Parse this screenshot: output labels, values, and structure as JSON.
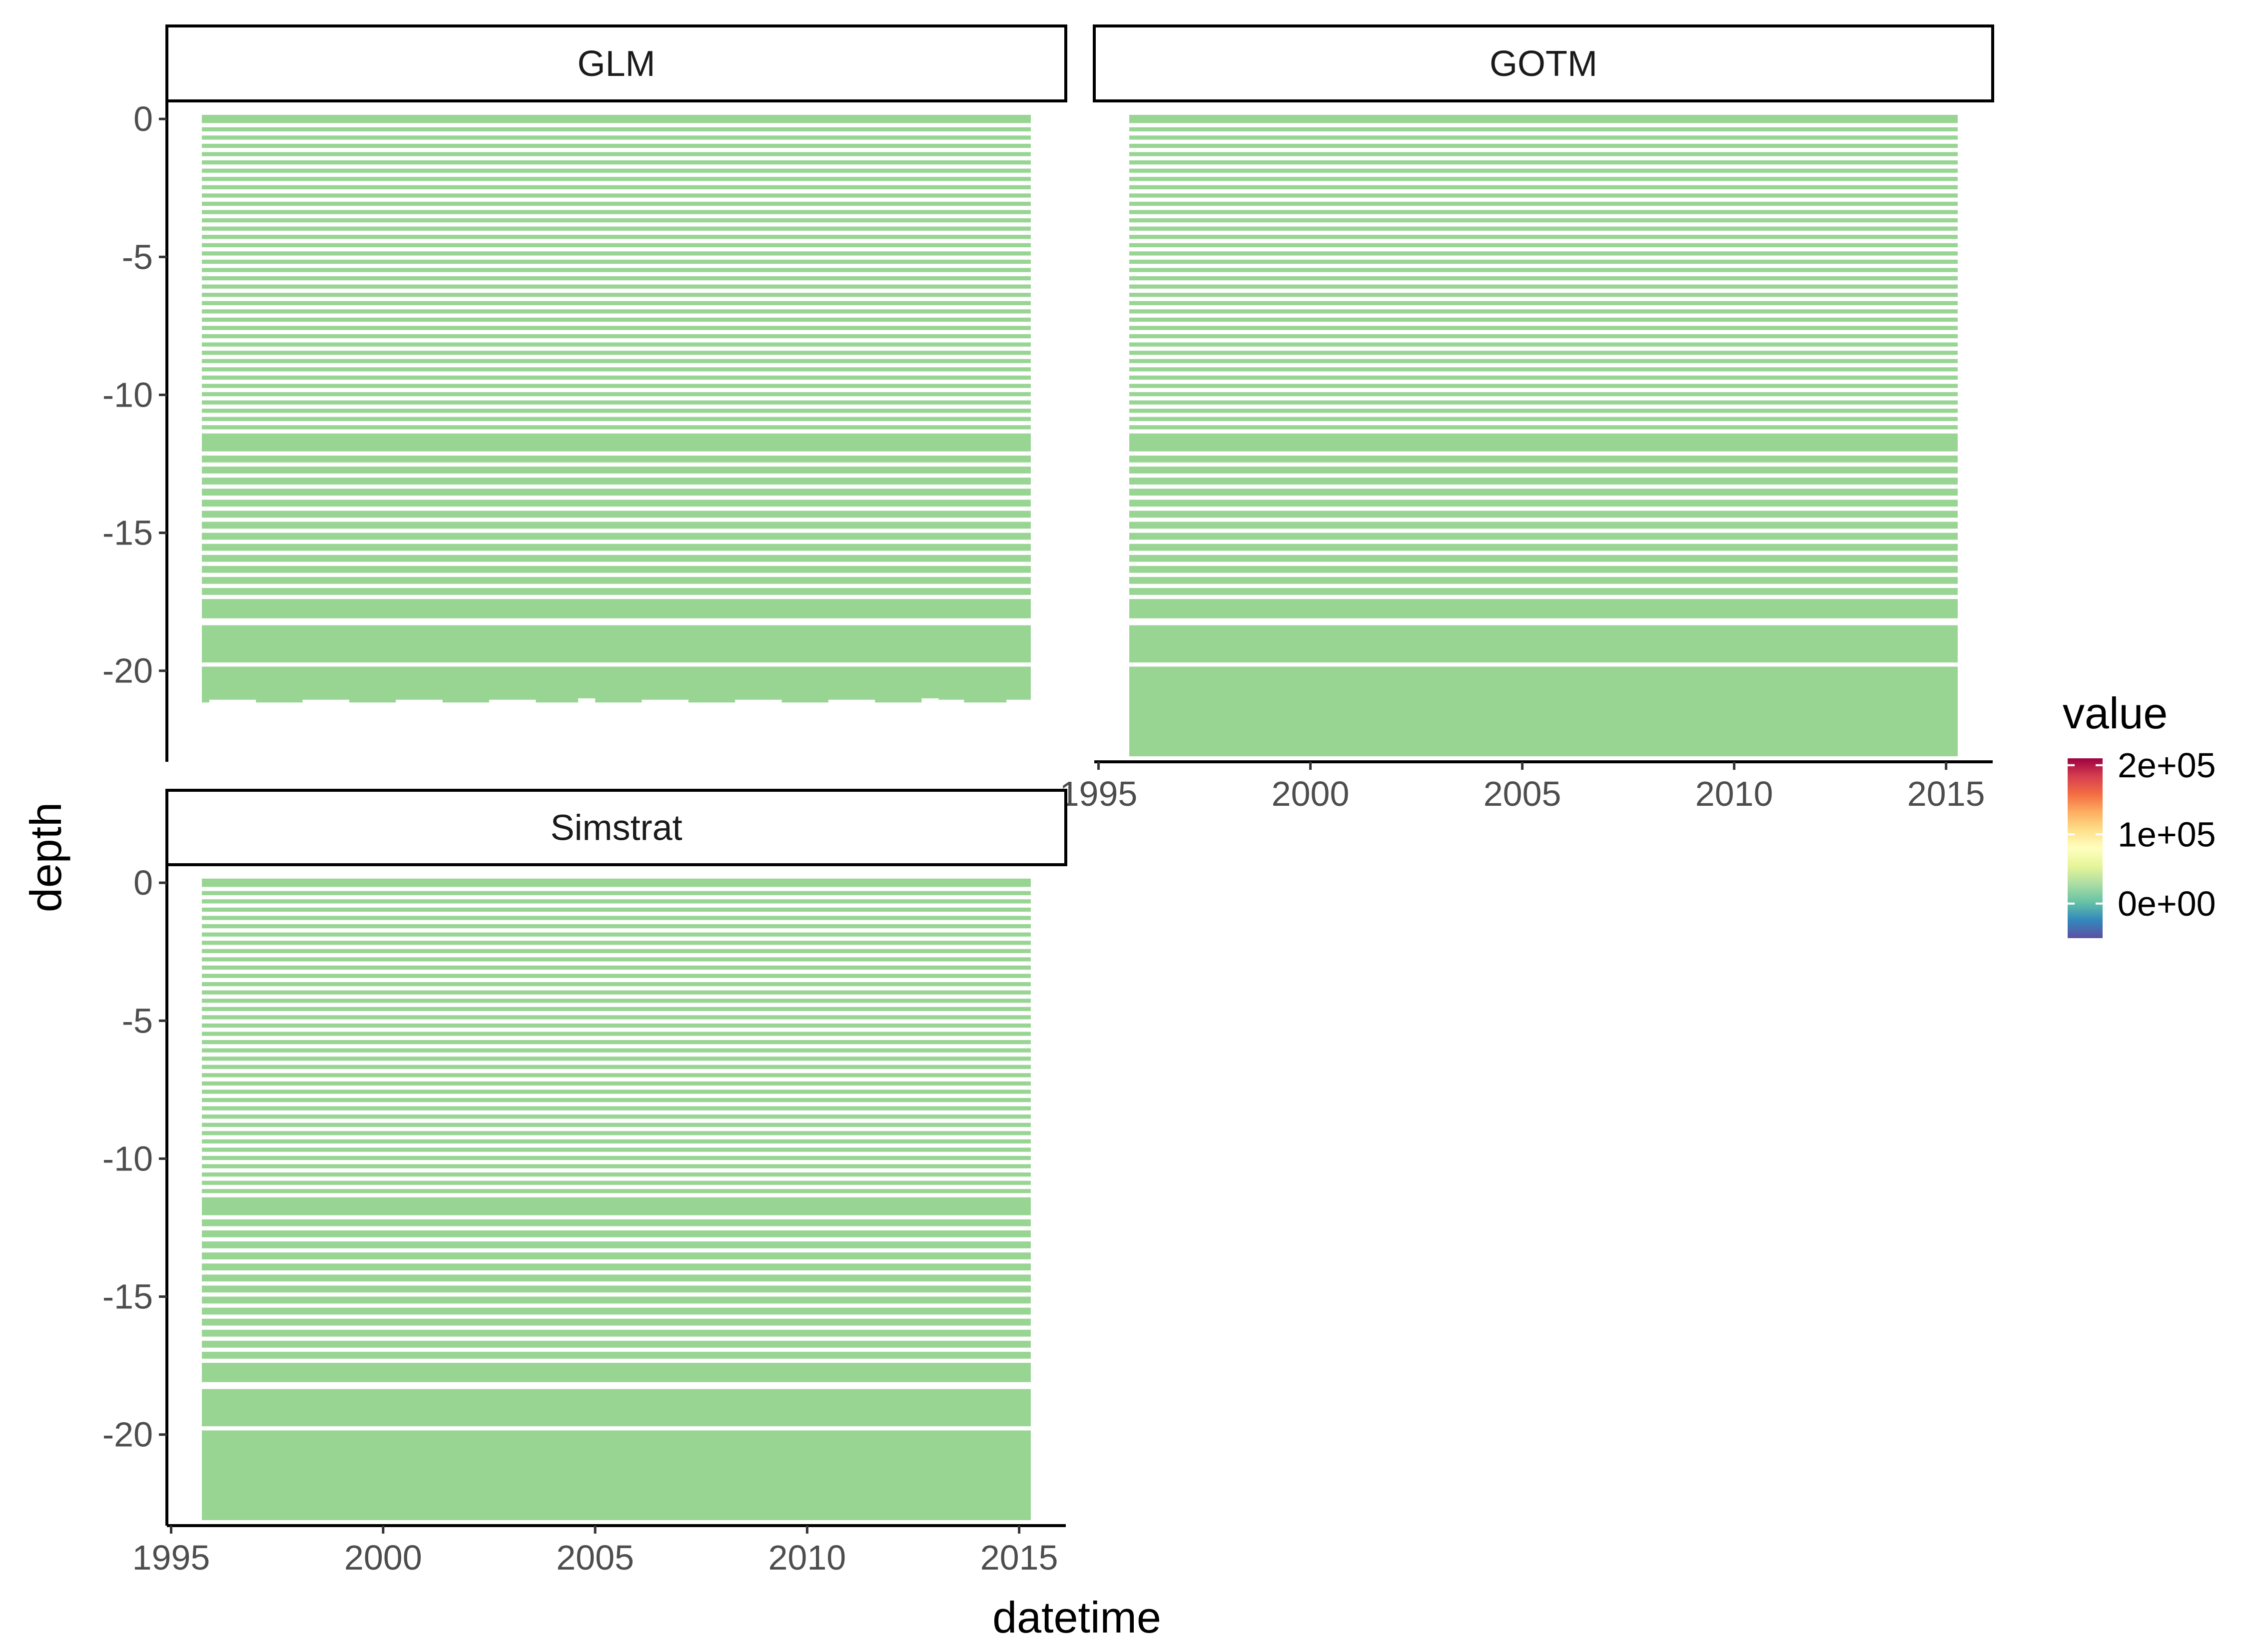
{
  "chart_data": {
    "type": "heatmap",
    "title": "",
    "xlabel": "datetime",
    "ylabel": "depth",
    "grid": false,
    "legend_placement": "right",
    "facets": [
      {
        "name": "GLM",
        "x_range": [
          1994.9,
          2016.1
        ],
        "xticks": [
          "1995",
          "2000",
          "2005",
          "2010",
          "2015"
        ],
        "show_xticks": false,
        "ylim": [
          -23.3,
          0.6
        ],
        "yticks": [
          "0",
          "-5",
          "-10",
          "-15",
          "-20"
        ],
        "show_yticks": true,
        "fill_color": "#98D593",
        "layers": [
          [
            -0.15,
            0.15
          ],
          [
            -0.45,
            -0.3
          ],
          [
            -0.75,
            -0.6
          ],
          [
            -1.05,
            -0.9
          ],
          [
            -1.35,
            -1.2
          ],
          [
            -1.65,
            -1.5
          ],
          [
            -1.95,
            -1.8
          ],
          [
            -2.25,
            -2.1
          ],
          [
            -2.55,
            -2.4
          ],
          [
            -2.85,
            -2.7
          ],
          [
            -3.15,
            -3.0
          ],
          [
            -3.45,
            -3.3
          ],
          [
            -3.75,
            -3.6
          ],
          [
            -4.05,
            -3.9
          ],
          [
            -4.35,
            -4.2
          ],
          [
            -4.65,
            -4.5
          ],
          [
            -4.95,
            -4.8
          ],
          [
            -5.25,
            -5.1
          ],
          [
            -5.55,
            -5.4
          ],
          [
            -5.85,
            -5.7
          ],
          [
            -6.15,
            -6.0
          ],
          [
            -6.45,
            -6.3
          ],
          [
            -6.75,
            -6.6
          ],
          [
            -7.05,
            -6.9
          ],
          [
            -7.35,
            -7.2
          ],
          [
            -7.65,
            -7.5
          ],
          [
            -7.95,
            -7.8
          ],
          [
            -8.25,
            -8.1
          ],
          [
            -8.55,
            -8.4
          ],
          [
            -8.85,
            -8.7
          ],
          [
            -9.15,
            -9.0
          ],
          [
            -9.45,
            -9.3
          ],
          [
            -9.75,
            -9.6
          ],
          [
            -10.05,
            -9.9
          ],
          [
            -10.35,
            -10.2
          ],
          [
            -10.65,
            -10.5
          ],
          [
            -10.95,
            -10.8
          ],
          [
            -11.25,
            -11.1
          ],
          [
            -12.05,
            -11.4
          ],
          [
            -12.45,
            -12.2
          ],
          [
            -12.85,
            -12.6
          ],
          [
            -13.25,
            -13.0
          ],
          [
            -13.65,
            -13.4
          ],
          [
            -14.05,
            -13.8
          ],
          [
            -14.45,
            -14.2
          ],
          [
            -14.85,
            -14.6
          ],
          [
            -15.25,
            -15.0
          ],
          [
            -15.65,
            -15.4
          ],
          [
            -16.05,
            -15.8
          ],
          [
            -16.45,
            -16.2
          ],
          [
            -16.85,
            -16.6
          ],
          [
            -17.25,
            -17.0
          ],
          [
            -18.1,
            -17.4
          ],
          [
            -19.7,
            -18.35
          ],
          [
            -21.0,
            -19.85
          ]
        ],
        "bottom_edge": [
          [
            1994.9,
            -21.15
          ],
          [
            1995.9,
            -21.15
          ],
          [
            1995.9,
            -21.05
          ],
          [
            1997.0,
            -21.05
          ],
          [
            1997.0,
            -21.15
          ],
          [
            1998.1,
            -21.15
          ],
          [
            1998.1,
            -21.05
          ],
          [
            1999.2,
            -21.05
          ],
          [
            1999.2,
            -21.15
          ],
          [
            2000.3,
            -21.15
          ],
          [
            2000.3,
            -21.05
          ],
          [
            2001.4,
            -21.05
          ],
          [
            2001.4,
            -21.15
          ],
          [
            2002.5,
            -21.15
          ],
          [
            2002.5,
            -21.05
          ],
          [
            2003.6,
            -21.05
          ],
          [
            2003.6,
            -21.15
          ],
          [
            2004.6,
            -21.15
          ],
          [
            2004.6,
            -20.95
          ],
          [
            2005.0,
            -20.95
          ],
          [
            2005.0,
            -21.15
          ],
          [
            2006.1,
            -21.15
          ],
          [
            2006.1,
            -21.05
          ],
          [
            2007.2,
            -21.05
          ],
          [
            2007.2,
            -21.15
          ],
          [
            2008.3,
            -21.15
          ],
          [
            2008.3,
            -21.05
          ],
          [
            2009.4,
            -21.05
          ],
          [
            2009.4,
            -21.15
          ],
          [
            2010.5,
            -21.15
          ],
          [
            2010.5,
            -21.05
          ],
          [
            2011.6,
            -21.05
          ],
          [
            2011.6,
            -21.15
          ],
          [
            2012.7,
            -21.15
          ],
          [
            2012.7,
            -20.95
          ],
          [
            2012.9,
            -20.85
          ],
          [
            2013.1,
            -20.85
          ],
          [
            2013.1,
            -21.05
          ],
          [
            2013.7,
            -21.05
          ],
          [
            2013.7,
            -21.15
          ],
          [
            2014.7,
            -21.15
          ],
          [
            2014.7,
            -21.05
          ],
          [
            2016.1,
            -21.05
          ],
          [
            2016.1,
            -21.15
          ]
        ]
      },
      {
        "name": "GOTM",
        "x_range": [
          1994.9,
          2016.1
        ],
        "xticks": [
          "1995",
          "2000",
          "2005",
          "2010",
          "2015"
        ],
        "show_xticks": true,
        "ylim": [
          -23.3,
          0.6
        ],
        "yticks": [
          "0",
          "-5",
          "-10",
          "-15",
          "-20"
        ],
        "show_yticks": false,
        "fill_color": "#98D593",
        "layers": [
          [
            -0.15,
            0.15
          ],
          [
            -0.45,
            -0.3
          ],
          [
            -0.75,
            -0.6
          ],
          [
            -1.05,
            -0.9
          ],
          [
            -1.35,
            -1.2
          ],
          [
            -1.65,
            -1.5
          ],
          [
            -1.95,
            -1.8
          ],
          [
            -2.25,
            -2.1
          ],
          [
            -2.55,
            -2.4
          ],
          [
            -2.85,
            -2.7
          ],
          [
            -3.15,
            -3.0
          ],
          [
            -3.45,
            -3.3
          ],
          [
            -3.75,
            -3.6
          ],
          [
            -4.05,
            -3.9
          ],
          [
            -4.35,
            -4.2
          ],
          [
            -4.65,
            -4.5
          ],
          [
            -4.95,
            -4.8
          ],
          [
            -5.25,
            -5.1
          ],
          [
            -5.55,
            -5.4
          ],
          [
            -5.85,
            -5.7
          ],
          [
            -6.15,
            -6.0
          ],
          [
            -6.45,
            -6.3
          ],
          [
            -6.75,
            -6.6
          ],
          [
            -7.05,
            -6.9
          ],
          [
            -7.35,
            -7.2
          ],
          [
            -7.65,
            -7.5
          ],
          [
            -7.95,
            -7.8
          ],
          [
            -8.25,
            -8.1
          ],
          [
            -8.55,
            -8.4
          ],
          [
            -8.85,
            -8.7
          ],
          [
            -9.15,
            -9.0
          ],
          [
            -9.45,
            -9.3
          ],
          [
            -9.75,
            -9.6
          ],
          [
            -10.05,
            -9.9
          ],
          [
            -10.35,
            -10.2
          ],
          [
            -10.65,
            -10.5
          ],
          [
            -10.95,
            -10.8
          ],
          [
            -11.25,
            -11.1
          ],
          [
            -12.05,
            -11.4
          ],
          [
            -12.45,
            -12.2
          ],
          [
            -12.85,
            -12.6
          ],
          [
            -13.25,
            -13.0
          ],
          [
            -13.65,
            -13.4
          ],
          [
            -14.05,
            -13.8
          ],
          [
            -14.45,
            -14.2
          ],
          [
            -14.85,
            -14.6
          ],
          [
            -15.25,
            -15.0
          ],
          [
            -15.65,
            -15.4
          ],
          [
            -16.05,
            -15.8
          ],
          [
            -16.45,
            -16.2
          ],
          [
            -16.85,
            -16.6
          ],
          [
            -17.25,
            -17.0
          ],
          [
            -18.1,
            -17.4
          ],
          [
            -19.7,
            -18.35
          ],
          [
            -23.1,
            -19.85
          ]
        ]
      },
      {
        "name": "Simstrat",
        "x_range": [
          1994.9,
          2016.1
        ],
        "xticks": [
          "1995",
          "2000",
          "2005",
          "2010",
          "2015"
        ],
        "show_xticks": true,
        "ylim": [
          -23.3,
          0.6
        ],
        "yticks": [
          "0",
          "-5",
          "-10",
          "-15",
          "-20"
        ],
        "show_yticks": true,
        "fill_color": "#98D593",
        "layers": [
          [
            -0.15,
            0.15
          ],
          [
            -0.45,
            -0.3
          ],
          [
            -0.75,
            -0.6
          ],
          [
            -1.05,
            -0.9
          ],
          [
            -1.35,
            -1.2
          ],
          [
            -1.65,
            -1.5
          ],
          [
            -1.95,
            -1.8
          ],
          [
            -2.25,
            -2.1
          ],
          [
            -2.55,
            -2.4
          ],
          [
            -2.85,
            -2.7
          ],
          [
            -3.15,
            -3.0
          ],
          [
            -3.45,
            -3.3
          ],
          [
            -3.75,
            -3.6
          ],
          [
            -4.05,
            -3.9
          ],
          [
            -4.35,
            -4.2
          ],
          [
            -4.65,
            -4.5
          ],
          [
            -4.95,
            -4.8
          ],
          [
            -5.25,
            -5.1
          ],
          [
            -5.55,
            -5.4
          ],
          [
            -5.85,
            -5.7
          ],
          [
            -6.15,
            -6.0
          ],
          [
            -6.45,
            -6.3
          ],
          [
            -6.75,
            -6.6
          ],
          [
            -7.05,
            -6.9
          ],
          [
            -7.35,
            -7.2
          ],
          [
            -7.65,
            -7.5
          ],
          [
            -7.95,
            -7.8
          ],
          [
            -8.25,
            -8.1
          ],
          [
            -8.55,
            -8.4
          ],
          [
            -8.85,
            -8.7
          ],
          [
            -9.15,
            -9.0
          ],
          [
            -9.45,
            -9.3
          ],
          [
            -9.75,
            -9.6
          ],
          [
            -10.05,
            -9.9
          ],
          [
            -10.35,
            -10.2
          ],
          [
            -10.65,
            -10.5
          ],
          [
            -10.95,
            -10.8
          ],
          [
            -11.25,
            -11.1
          ],
          [
            -12.05,
            -11.4
          ],
          [
            -12.45,
            -12.2
          ],
          [
            -12.85,
            -12.6
          ],
          [
            -13.25,
            -13.0
          ],
          [
            -13.65,
            -13.4
          ],
          [
            -14.05,
            -13.8
          ],
          [
            -14.45,
            -14.2
          ],
          [
            -14.85,
            -14.6
          ],
          [
            -15.25,
            -15.0
          ],
          [
            -15.65,
            -15.4
          ],
          [
            -16.05,
            -15.8
          ],
          [
            -16.45,
            -16.2
          ],
          [
            -16.85,
            -16.6
          ],
          [
            -17.25,
            -17.0
          ],
          [
            -18.1,
            -17.4
          ],
          [
            -19.7,
            -18.35
          ],
          [
            -23.1,
            -19.85
          ]
        ]
      }
    ],
    "legend": {
      "title": "value",
      "type": "colorbar",
      "range": [
        -50000,
        210000
      ],
      "tick_values": [
        200000,
        100000,
        0
      ],
      "tick_labels": [
        "2e+05",
        "1e+05",
        "0e+00"
      ],
      "palette": [
        "#5E4FA2",
        "#3288BD",
        "#66C2A5",
        "#ABDDA4",
        "#E6F598",
        "#FFFFBF",
        "#FEE08B",
        "#FDAE61",
        "#F46D43",
        "#D53E4F",
        "#9E0142"
      ]
    }
  }
}
